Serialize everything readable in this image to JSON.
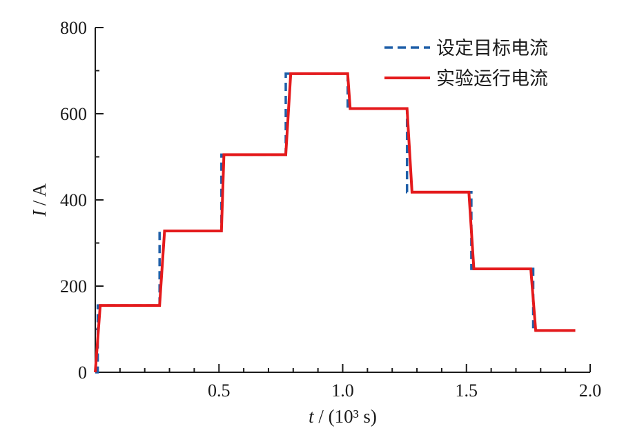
{
  "chart_data": {
    "type": "line",
    "title": "",
    "xlabel": "t / (10³ s)",
    "ylabel": "I / A",
    "xlim": [
      0,
      2.0
    ],
    "ylim": [
      0,
      800
    ],
    "grid": false,
    "legend_position": "top-right",
    "x_ticks": [
      0.5,
      1.0,
      1.5,
      2.0
    ],
    "x_tick_labels": [
      "0.5",
      "1.0",
      "1.5",
      "2.0"
    ],
    "y_ticks": [
      0,
      200,
      400,
      600,
      800
    ],
    "y_tick_labels": [
      "0",
      "200",
      "400",
      "600",
      "800"
    ],
    "series": [
      {
        "name": "设定目标电流",
        "style": "dashed",
        "color": "#1f5fa8",
        "x": [
          0.0,
          0.01,
          0.01,
          0.26,
          0.26,
          0.51,
          0.51,
          0.77,
          0.77,
          1.02,
          1.02,
          1.26,
          1.26,
          1.52,
          1.52,
          1.77,
          1.77,
          1.94
        ],
        "y": [
          0,
          0,
          155,
          155,
          328,
          328,
          505,
          505,
          693,
          693,
          612,
          612,
          418,
          418,
          240,
          240,
          97,
          97
        ]
      },
      {
        "name": "实验运行电流",
        "style": "solid",
        "color": "#e41a1c",
        "x": [
          0.0,
          0.02,
          0.26,
          0.28,
          0.51,
          0.52,
          0.77,
          0.79,
          1.02,
          1.03,
          1.26,
          1.28,
          1.51,
          1.53,
          1.76,
          1.78,
          1.94
        ],
        "y": [
          0,
          155,
          155,
          328,
          328,
          505,
          505,
          693,
          693,
          612,
          612,
          418,
          418,
          240,
          240,
          97,
          97
        ]
      }
    ]
  },
  "colors": {
    "axis": "#1a1a1a"
  }
}
